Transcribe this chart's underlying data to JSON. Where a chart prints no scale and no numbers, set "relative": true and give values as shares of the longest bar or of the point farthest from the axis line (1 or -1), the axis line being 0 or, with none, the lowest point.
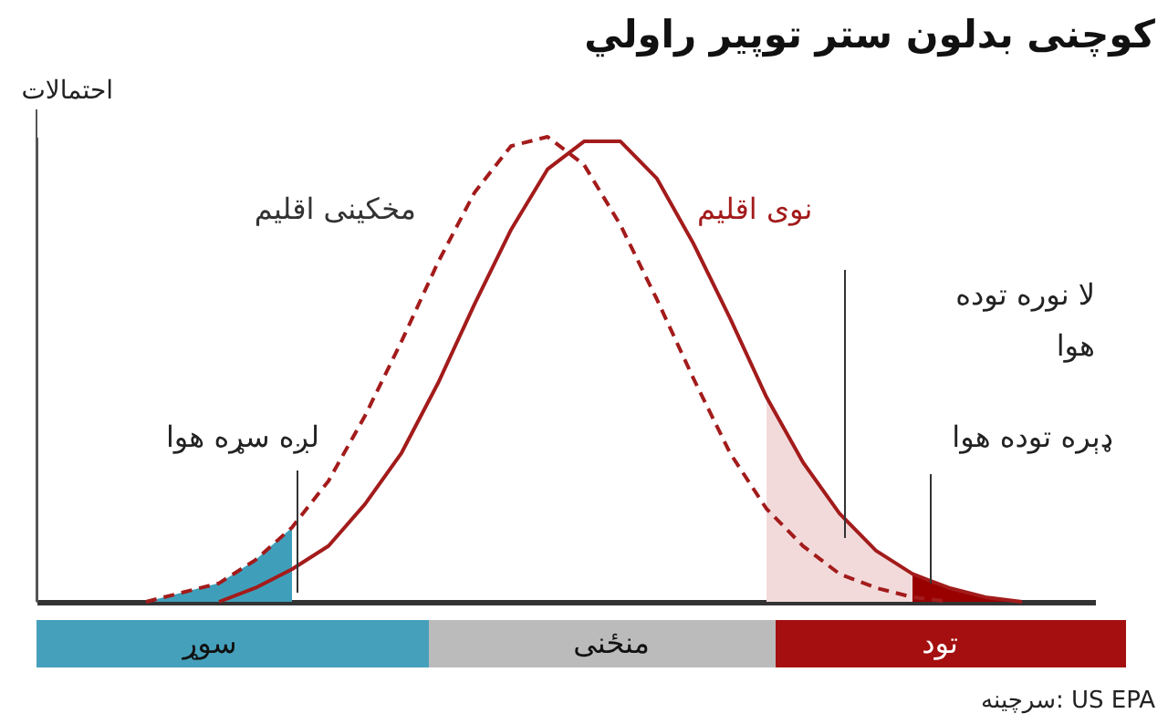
{
  "chart_data": {
    "type": "line",
    "relative": true,
    "legend": false,
    "title": "کوچنی بدلون ستر توپیر راولي",
    "ylabel": "احتمالات",
    "categories": [
      null,
      null,
      null,
      null,
      null,
      null,
      null,
      null,
      null,
      null,
      null,
      null,
      null,
      null,
      null,
      null,
      null,
      null,
      null,
      null,
      null,
      null,
      null,
      null,
      null,
      null,
      null,
      null,
      null,
      null
    ],
    "series": [
      {
        "type": "area",
        "color": "#3f9fba",
        "values": [
          null,
          null,
          null,
          0,
          0.02,
          0.04,
          0.09,
          0.16,
          null,
          null,
          null,
          null,
          null,
          null,
          null,
          null,
          null,
          null,
          null,
          null,
          null,
          null,
          null,
          null,
          null,
          null,
          null,
          null,
          null,
          null
        ]
      },
      {
        "type": "area",
        "color": "#f2dadb",
        "values": [
          null,
          null,
          null,
          null,
          null,
          null,
          null,
          null,
          null,
          null,
          null,
          null,
          null,
          null,
          null,
          null,
          null,
          null,
          null,
          null,
          0.44,
          0.3,
          0.19,
          0.11,
          0.06,
          0.03,
          0.01,
          0,
          null,
          null
        ]
      },
      {
        "type": "area",
        "color": "#990000",
        "values": [
          null,
          null,
          null,
          null,
          null,
          null,
          null,
          null,
          null,
          null,
          null,
          null,
          null,
          null,
          null,
          null,
          null,
          null,
          null,
          null,
          null,
          null,
          null,
          null,
          0.06,
          0.03,
          0.01,
          0,
          null,
          null
        ]
      },
      {
        "name": "مخکینی اقلیم",
        "color": "#a31b1b",
        "line_style": "dashed",
        "values": [
          null,
          null,
          null,
          0,
          0.02,
          0.04,
          0.09,
          0.16,
          0.26,
          0.4,
          0.56,
          0.73,
          0.88,
          0.98,
          1.0,
          0.94,
          0.81,
          0.65,
          0.48,
          0.32,
          0.2,
          0.12,
          0.06,
          0.03,
          0.01,
          0,
          null,
          null,
          null,
          null
        ]
      },
      {
        "name": "نوی اقلیم",
        "color": "#a31b1b",
        "line_style": "solid",
        "values": [
          null,
          null,
          null,
          null,
          null,
          0,
          0.03,
          0.07,
          0.12,
          0.21,
          0.32,
          0.47,
          0.64,
          0.8,
          0.93,
          0.99,
          0.99,
          0.91,
          0.77,
          0.61,
          0.44,
          0.3,
          0.19,
          0.11,
          0.06,
          0.03,
          0.01,
          0,
          null,
          null
        ]
      }
    ],
    "annotations": [
      "لا نوره توده\nهوا",
      "لږه سړه هوا",
      "ډېره توده هوا",
      "سوړ",
      "منځنی",
      "تود",
      "سرچینه: US EPA"
    ]
  }
}
